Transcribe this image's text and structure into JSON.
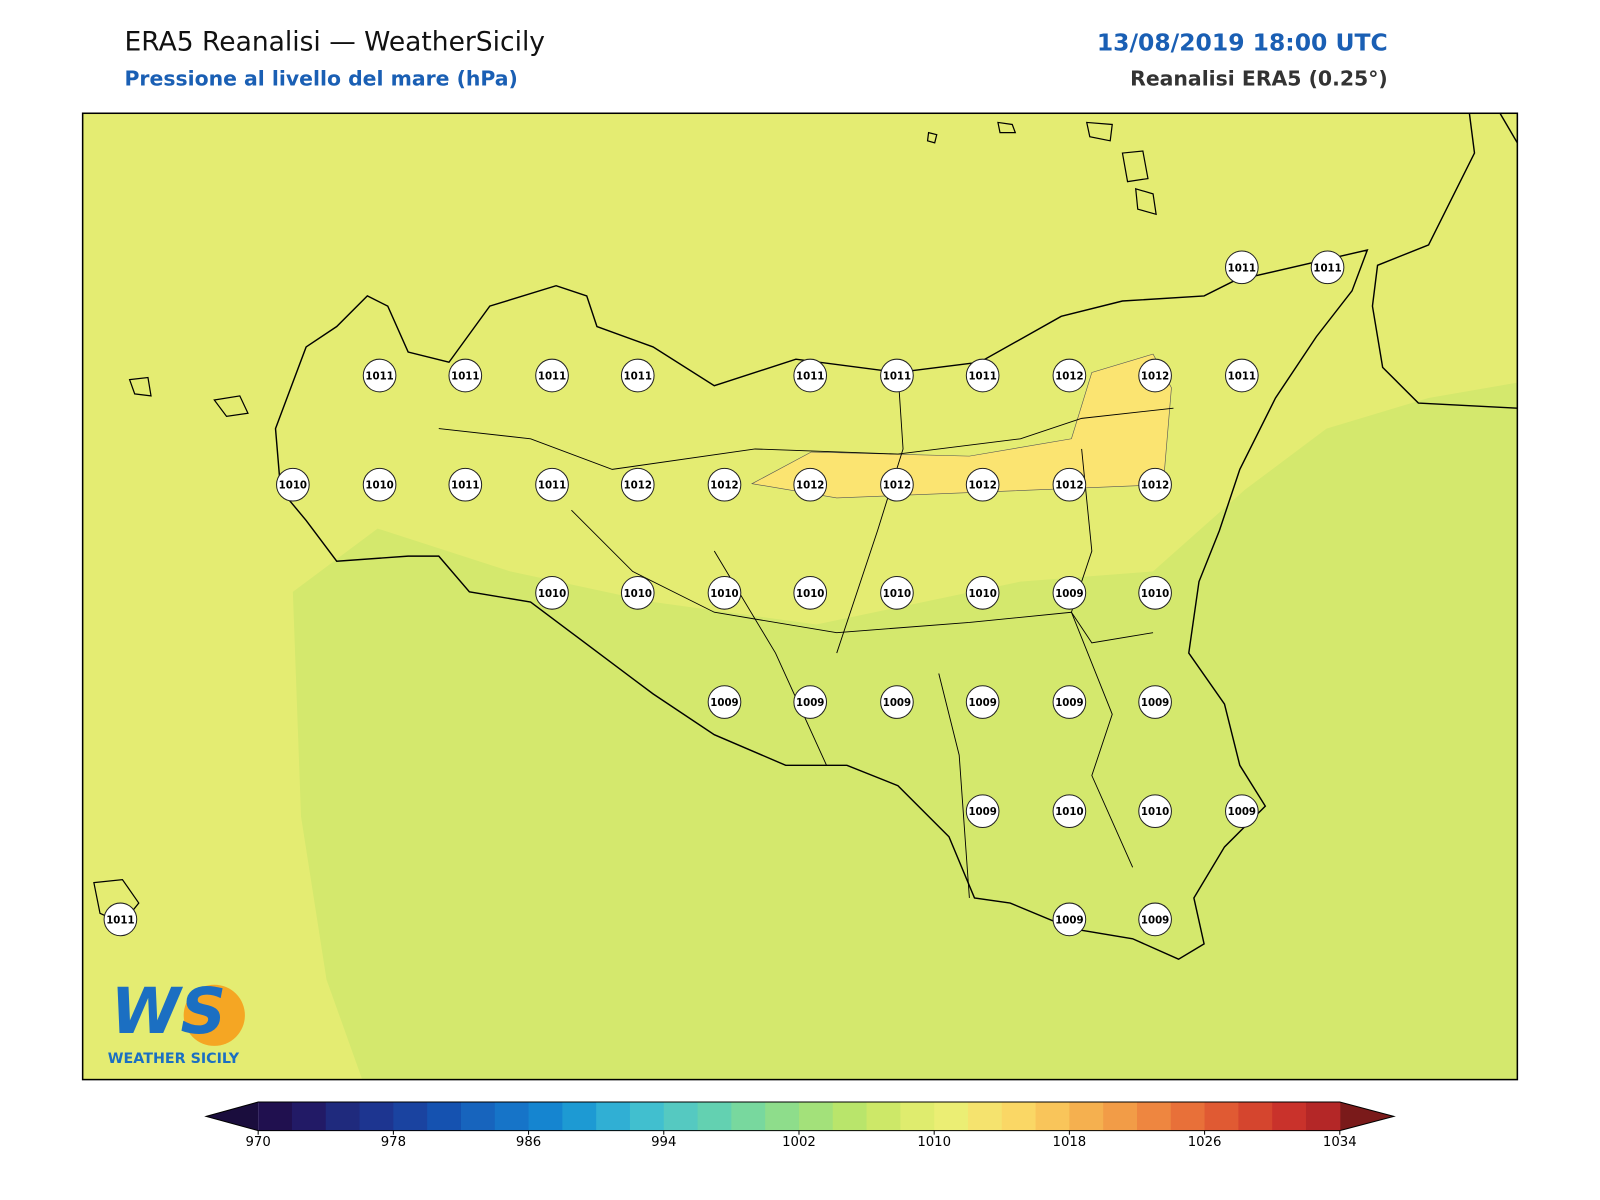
{
  "header": {
    "title": "ERA5 Reanalisi — WeatherSicily",
    "subtitle": "Pressione al livello del mare (hPa)",
    "datetime": "13/08/2019 18:00 UTC",
    "source": "Reanalisi ERA5 (0.25°)"
  },
  "logo": {
    "mark": "WS",
    "caption": "WEATHER SICILY"
  },
  "map": {
    "field_colors": [
      "#e4ec72",
      "#d4e86d",
      "#fbe471"
    ],
    "stations": [
      1011,
      1011,
      1011,
      1011,
      1011,
      1011,
      1011,
      1011,
      1011,
      1012,
      1012,
      1011,
      1010,
      1010,
      1011,
      1011,
      1012,
      1012,
      1012,
      1012,
      1012,
      1012,
      1012,
      1010,
      1010,
      1010,
      1010,
      1010,
      1010,
      1009,
      1010,
      1009,
      1009,
      1009,
      1009,
      1009,
      1009,
      1009,
      1010,
      1010,
      1009,
      1011,
      1009,
      1009
    ]
  },
  "colorbar": {
    "clim": [
      970,
      1034
    ],
    "ticks": [
      970,
      978,
      986,
      994,
      1002,
      1010,
      1018,
      1026,
      1034
    ],
    "under_color": "#1a0d3d",
    "over_color": "#7a1a1a",
    "colors": [
      "#20104f",
      "#221a66",
      "#1f2a7d",
      "#1d3590",
      "#1a43a0",
      "#1552b0",
      "#1764bd",
      "#1674c8",
      "#1585d0",
      "#1d9ad3",
      "#30afd4",
      "#41bfcf",
      "#55c9c1",
      "#63d1b1",
      "#78d89e",
      "#8edd8b",
      "#a3e17a",
      "#b9e56b",
      "#cde868",
      "#dfec6e",
      "#ebee74",
      "#f5e36e",
      "#fad765",
      "#f9c55a",
      "#f5b04f",
      "#f29c47",
      "#ee8640",
      "#e87039",
      "#e05a33",
      "#d5452e",
      "#c9322b",
      "#b42727"
    ]
  }
}
